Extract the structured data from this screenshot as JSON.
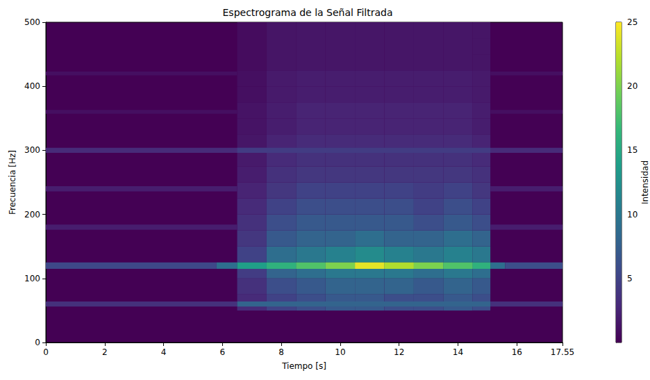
{
  "chart_data": {
    "type": "heatmap",
    "title": "Espectrograma de la Señal Filtrada",
    "x_label": "Tiempo [s]",
    "y_label": "Frecuencia [Hz]",
    "xlim": [
      0,
      17.55
    ],
    "xticks": [
      0,
      2,
      4,
      6,
      8,
      10,
      12,
      14,
      16
    ],
    "ylim": [
      0,
      500
    ],
    "yticks": [
      0,
      100,
      200,
      300,
      400,
      500
    ],
    "noise_grid": {
      "t_edges": [
        6.5,
        7.5,
        8.5,
        9.5,
        10.5,
        11.5,
        12.5,
        13.5,
        14.5,
        15.1
      ],
      "f_edges": [
        50,
        75,
        100,
        125,
        150,
        175,
        200,
        225,
        250,
        275,
        300,
        325,
        350,
        375,
        400,
        425,
        450,
        475,
        500
      ],
      "values": [
        [
          3,
          3.5,
          4.5,
          5,
          4,
          3.5,
          3,
          2.5,
          2,
          1.8,
          1.5,
          1.3,
          1.3,
          1,
          1,
          0.8,
          0.8,
          0.8
        ],
        [
          5,
          6,
          8,
          9,
          7,
          6,
          5,
          4,
          3.5,
          3,
          2.5,
          2,
          2,
          1.8,
          1.8,
          1.4,
          1.4,
          1.4
        ],
        [
          6,
          7,
          9,
          10,
          8,
          7,
          6,
          5,
          4,
          3.5,
          3,
          2.5,
          2.5,
          2,
          2,
          1.5,
          1.5,
          1.5
        ],
        [
          7,
          8,
          10,
          11,
          8,
          7,
          6,
          5,
          4,
          3.5,
          3,
          2.5,
          2.5,
          2,
          2,
          1.5,
          1.5,
          1.5
        ],
        [
          7,
          8,
          10,
          12,
          9,
          7,
          6,
          5,
          4,
          3.5,
          3,
          2.5,
          2.5,
          2,
          2,
          1.5,
          1.5,
          1.5
        ],
        [
          6,
          8,
          10,
          11,
          8,
          7,
          6,
          5,
          4,
          3.5,
          3,
          2.5,
          2.5,
          2,
          2,
          1.5,
          1.5,
          1.5
        ],
        [
          6,
          7,
          9,
          10,
          8,
          6,
          5,
          4.5,
          4,
          3.5,
          3,
          2.5,
          2.5,
          2,
          2,
          1.5,
          1.5,
          1.5
        ],
        [
          7,
          8,
          10,
          11,
          9,
          7,
          6,
          5,
          4,
          3.5,
          3,
          2.5,
          2.5,
          2,
          2,
          1.5,
          1.5,
          1.5
        ],
        [
          6,
          7,
          9,
          10,
          8,
          6,
          5,
          4,
          3.5,
          3,
          2.5,
          2,
          2,
          1.8,
          1.8,
          1.4,
          1.4,
          1.4
        ]
      ]
    },
    "line_cells": [
      [
        0,
        5.8,
        115,
        125,
        5.5
      ],
      [
        5.8,
        6.5,
        115,
        125,
        9
      ],
      [
        15.1,
        15.6,
        115,
        125,
        9
      ],
      [
        15.6,
        17.55,
        115,
        125,
        6
      ],
      [
        0,
        6.5,
        56,
        64,
        3.5
      ],
      [
        15.1,
        17.55,
        56,
        64,
        3.5
      ],
      [
        6.5,
        15.1,
        56,
        64,
        8
      ],
      [
        0,
        6.5,
        176,
        184,
        2
      ],
      [
        15.1,
        17.55,
        176,
        184,
        2
      ],
      [
        0,
        6.5,
        236,
        244,
        2
      ],
      [
        15.1,
        17.55,
        236,
        244,
        2
      ],
      [
        0,
        17.55,
        296,
        304,
        3
      ],
      [
        6.5,
        15.1,
        296,
        304,
        4.5
      ],
      [
        0,
        6.5,
        357,
        363,
        1
      ],
      [
        15.1,
        17.55,
        357,
        363,
        1
      ],
      [
        0,
        6.5,
        417,
        423,
        1
      ],
      [
        15.1,
        17.55,
        417,
        423,
        1
      ],
      [
        6.5,
        7.5,
        115,
        125,
        14
      ],
      [
        7.5,
        8.5,
        115,
        125,
        16
      ],
      [
        8.5,
        9.5,
        115,
        125,
        18
      ],
      [
        9.5,
        10.5,
        115,
        125,
        20
      ],
      [
        10.5,
        11.5,
        115,
        125,
        24
      ],
      [
        11.5,
        12.5,
        115,
        125,
        22
      ],
      [
        12.5,
        13.5,
        115,
        125,
        20
      ],
      [
        13.5,
        14.5,
        115,
        125,
        18
      ],
      [
        14.5,
        15.1,
        115,
        125,
        16
      ]
    ],
    "colorbar": {
      "label": "Intensidad",
      "range": [
        0,
        25
      ],
      "ticks": [
        5,
        10,
        15,
        20,
        25
      ]
    }
  }
}
